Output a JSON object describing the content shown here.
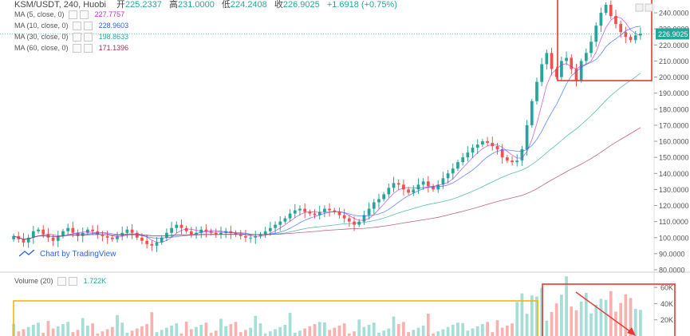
{
  "header": {
    "symbol": "KSM/USDT, 240, Huobi",
    "open_label": "开",
    "open": "225.2337",
    "high_label": "高",
    "high": "231.0000",
    "low_label": "低",
    "low": "224.2408",
    "close_label": "收",
    "close": "226.9025",
    "change": "+1.6918 (+0.75%)"
  },
  "indicators": [
    {
      "label": "MA (5, close, 0)",
      "value": "227.7757",
      "color": "#c02ccf"
    },
    {
      "label": "MA (10, close, 0)",
      "value": "228.9603",
      "color": "#2962ff"
    },
    {
      "label": "MA (30, close, 0)",
      "value": "198.8633",
      "color": "#26a69a"
    },
    {
      "label": "MA (60, close, 0)",
      "value": "171.1396",
      "color": "#a3325a"
    }
  ],
  "volume_indicator": {
    "label": "Volume (20)",
    "value": "1.722K"
  },
  "watermark": "Chart by TradingView",
  "last_price_tag": "226.9025",
  "colors": {
    "up": "#26a69a",
    "down": "#ef5350",
    "up_vol": "#a5ddd7",
    "down_vol": "#f7b2b0",
    "annot_red": "#e53935",
    "annot_orange": "#f5b700"
  },
  "chart_data": [
    {
      "type": "candlestick",
      "title": "KSM/USDT, 240, Huobi",
      "ylim": [
        80,
        245
      ],
      "yticks": [
        "80.0000",
        "90.0000",
        "100.0000",
        "110.0000",
        "120.0000",
        "130.0000",
        "140.0000",
        "150.0000",
        "160.0000",
        "170.0000",
        "180.0000",
        "190.0000",
        "200.0000",
        "210.0000",
        "220.0000",
        "230.0000",
        "240.0000"
      ],
      "close_series": [
        101,
        99,
        97,
        100,
        104,
        105,
        102,
        100,
        98,
        101,
        104,
        106,
        103,
        101,
        103,
        105,
        104,
        102,
        101,
        100,
        99,
        101,
        103,
        105,
        103,
        100,
        98,
        96,
        95,
        97,
        100,
        103,
        106,
        108,
        106,
        104,
        102,
        103,
        105,
        104,
        103,
        102,
        103,
        104,
        103,
        102,
        101,
        100,
        100,
        101,
        102,
        104,
        106,
        108,
        110,
        112,
        115,
        117,
        118,
        116,
        115,
        114,
        116,
        118,
        117,
        116,
        114,
        112,
        110,
        108,
        110,
        114,
        118,
        122,
        124,
        127,
        131,
        134,
        133,
        130,
        128,
        130,
        133,
        135,
        132,
        130,
        133,
        137,
        140,
        143,
        147,
        150,
        153,
        156,
        158,
        160,
        159,
        157,
        155,
        150,
        148,
        147,
        148,
        155,
        170,
        185,
        197,
        208,
        215,
        205,
        200,
        210,
        212,
        205,
        198,
        210,
        215,
        222,
        232,
        240,
        245,
        238,
        233,
        228,
        225,
        223,
        226,
        227
      ]
    },
    {
      "type": "bar",
      "title": "Volume (20)",
      "ylim": [
        0,
        70000
      ],
      "yticks": [
        "20K",
        "40K",
        "60K"
      ]
    }
  ]
}
